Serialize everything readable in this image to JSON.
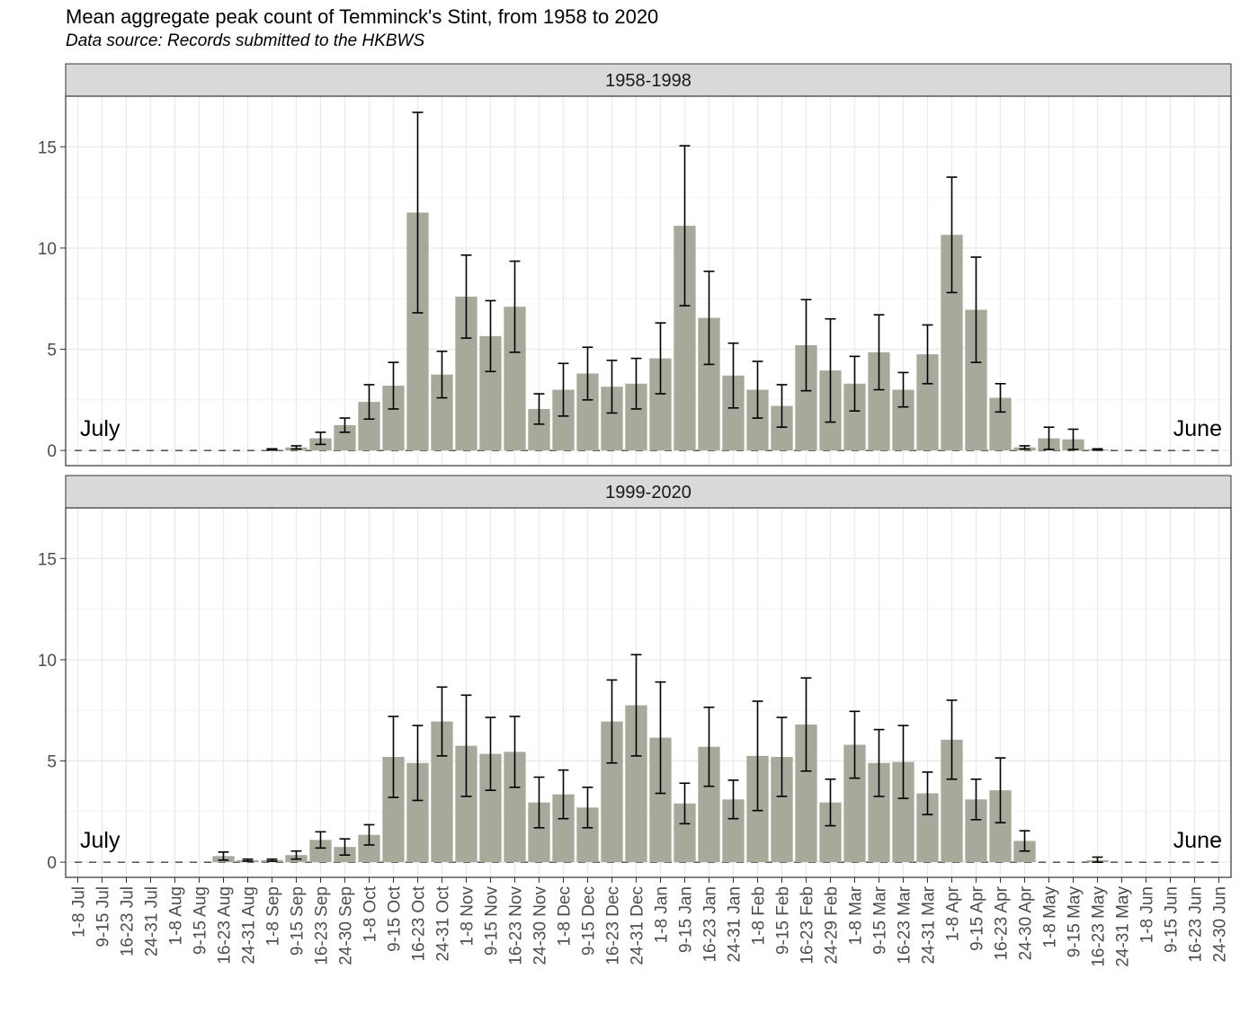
{
  "chart_data": {
    "type": "bar",
    "title": "Mean aggregate peak count of Temminck's Stint, from 1958 to 2020",
    "subtitle": "Data source: Records submitted to the HKBWS",
    "categories": [
      "1-8 Jul",
      "9-15 Jul",
      "16-23 Jul",
      "24-31 Jul",
      "1-8 Aug",
      "9-15 Aug",
      "16-23 Aug",
      "24-31 Aug",
      "1-8 Sep",
      "9-15 Sep",
      "16-23 Sep",
      "24-30 Sep",
      "1-8 Oct",
      "9-15 Oct",
      "16-23 Oct",
      "24-31 Oct",
      "1-8 Nov",
      "9-15 Nov",
      "16-23 Nov",
      "24-30 Nov",
      "1-8 Dec",
      "9-15 Dec",
      "16-23 Dec",
      "24-31 Dec",
      "1-8 Jan",
      "9-15 Jan",
      "16-23 Jan",
      "24-31 Jan",
      "1-8 Feb",
      "9-15 Feb",
      "16-23 Feb",
      "24-29 Feb",
      "1-8 Mar",
      "9-15 Mar",
      "16-23 Mar",
      "24-31 Mar",
      "1-8 Apr",
      "9-15 Apr",
      "16-23 Apr",
      "24-30 Apr",
      "1-8 May",
      "9-15 May",
      "16-23 May",
      "24-31 May",
      "1-8 Jun",
      "9-15 Jun",
      "16-23 Jun",
      "24-30 Jun"
    ],
    "ylim": [
      -0.75,
      17.5
    ],
    "yticks": [
      0,
      5,
      10,
      15
    ],
    "grid": true,
    "bar_color": "#a7a99a",
    "panel_strip_color": "#d9d9d9",
    "panels": [
      {
        "name": "1958-1998",
        "left_label": "July",
        "right_label": "June",
        "values": [
          0,
          0,
          0,
          0,
          0,
          0,
          0,
          0,
          0.05,
          0.15,
          0.6,
          1.25,
          2.4,
          3.2,
          11.75,
          3.75,
          7.6,
          5.65,
          7.1,
          2.05,
          3.0,
          3.8,
          3.15,
          3.3,
          4.55,
          11.1,
          6.55,
          3.7,
          3.0,
          2.2,
          5.2,
          3.95,
          3.3,
          4.85,
          3.0,
          4.75,
          10.65,
          6.95,
          2.6,
          0.15,
          0.6,
          0.55,
          0.05,
          0,
          0,
          0,
          0,
          0
        ],
        "errors": [
          0,
          0,
          0,
          0,
          0,
          0,
          0,
          0,
          0.03,
          0.08,
          0.3,
          0.35,
          0.85,
          1.15,
          4.95,
          1.15,
          2.05,
          1.75,
          2.25,
          0.75,
          1.3,
          1.3,
          1.3,
          1.25,
          1.75,
          3.95,
          2.3,
          1.6,
          1.4,
          1.05,
          2.25,
          2.55,
          1.35,
          1.85,
          0.85,
          1.45,
          2.85,
          2.6,
          0.7,
          0.08,
          0.55,
          0.5,
          0.03,
          0,
          0,
          0,
          0,
          0
        ]
      },
      {
        "name": "1999-2020",
        "left_label": "July",
        "right_label": "June",
        "values": [
          0,
          0,
          0,
          0,
          0,
          0,
          0.3,
          0.1,
          0.1,
          0.35,
          1.1,
          0.75,
          1.35,
          5.2,
          4.9,
          6.95,
          5.75,
          5.35,
          5.45,
          2.95,
          3.35,
          2.7,
          6.95,
          7.75,
          6.15,
          2.9,
          5.7,
          3.1,
          5.25,
          5.2,
          6.8,
          2.95,
          5.8,
          4.9,
          4.95,
          3.4,
          6.05,
          3.1,
          3.55,
          1.05,
          0,
          0,
          0.1,
          0,
          0,
          0,
          0,
          0
        ],
        "errors": [
          0,
          0,
          0,
          0,
          0,
          0,
          0.2,
          0.05,
          0.05,
          0.2,
          0.4,
          0.4,
          0.5,
          2.0,
          1.85,
          1.7,
          2.5,
          1.8,
          1.75,
          1.25,
          1.2,
          1.0,
          2.05,
          2.5,
          2.75,
          1.0,
          1.95,
          0.95,
          2.7,
          1.95,
          2.3,
          1.15,
          1.65,
          1.65,
          1.8,
          1.05,
          1.95,
          1.0,
          1.6,
          0.5,
          0,
          0,
          0.15,
          0,
          0,
          0,
          0,
          0
        ]
      }
    ]
  }
}
